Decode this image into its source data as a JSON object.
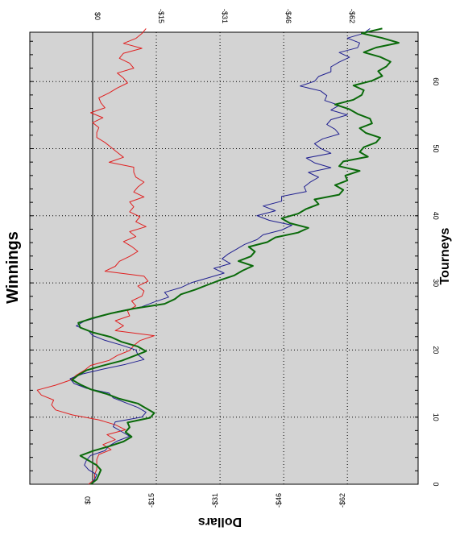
{
  "chart_data": {
    "type": "line",
    "title": "Winnings",
    "xlabel": "Tourneys",
    "ylabel": "Dollars",
    "orientation": "rotated 90 degrees clockwise",
    "xlim": [
      0,
      97
    ],
    "ylim": [
      -100,
      15
    ],
    "x_ticks": [
      "0",
      "10",
      "20",
      "30",
      "40",
      "50",
      "60"
    ],
    "y_ticks_top": [
      "$0",
      "-$15",
      "-$31",
      "-$46",
      "-$62"
    ],
    "y_ticks_bottom": [
      "$0",
      "-$15",
      "-$31",
      "-$46",
      "-$62"
    ],
    "grid": true,
    "zero_line": true,
    "colors": {
      "plot_bg": "#d3d3d3",
      "grid": "#000000"
    },
    "series": [
      {
        "color": "#e02020",
        "stroke": 1,
        "values": [
          1.0,
          -0.5,
          -0.5,
          -1.0,
          -1.0,
          -1.0,
          -1.5,
          -4.5,
          -2.5,
          -5.5,
          -3.5,
          -8.0,
          -5.5,
          -1.5,
          5.0,
          9.0,
          10.0,
          9.5,
          12.5,
          13.5,
          9.0,
          5.5,
          4.0,
          2.0,
          0.5,
          -4.0,
          -6.0,
          -9.0,
          -10.0,
          -11.5,
          -15.0,
          -5.5,
          -7.5,
          -5.5,
          -9.0,
          -8.5,
          -10.5,
          -9.5,
          -12.0,
          -12.5,
          -11.0,
          -13.5,
          -12.5,
          -3.0,
          -5.5,
          -6.5,
          -9.0,
          -11.0,
          -9.5,
          -7.5,
          -10.5,
          -9.0,
          -13.0,
          -10.5,
          -11.5,
          -9.0,
          -10.0,
          -9.0,
          -12.5,
          -10.0,
          -11.0,
          -12.5,
          -10.5,
          -10.0,
          -10.0,
          -4.0,
          -7.5,
          -6.0,
          -4.5,
          -3.0,
          -1.0,
          -1.0,
          -1.5,
          0.0,
          -2.5,
          0.5,
          -3.0,
          -2.0,
          -1.5,
          -4.0,
          -6.0,
          -8.5,
          -7.5,
          -6.0,
          -10.0,
          -9.0,
          -6.5,
          -7.5,
          -12.0,
          -7.5,
          -10.5,
          -12.0,
          -13.0
        ]
      },
      {
        "color": "#202090",
        "stroke": 1,
        "values": [
          0.5,
          -0.5,
          -1.0,
          1.0,
          2.0,
          1.5,
          0.5,
          -3.0,
          -4.0,
          -6.0,
          -9.0,
          -7.0,
          -5.0,
          -5.5,
          -12.0,
          -13.0,
          -11.0,
          -8.0,
          -5.0,
          -4.0,
          1.5,
          4.5,
          5.5,
          2.5,
          -2.5,
          -8.0,
          -12.5,
          -11.0,
          -10.5,
          -7.0,
          -3.0,
          0.0,
          1.0,
          4.0,
          2.0,
          -2.0,
          -6.0,
          -12.0,
          -15.0,
          -18.5,
          -17.5,
          -21.5,
          -24.0,
          -28.0,
          -32.0,
          -29.5,
          -33.5,
          -31.5,
          -33.0,
          -35.0,
          -37.0,
          -40.0,
          -41.5,
          -46.0,
          -48.5,
          -43.0,
          -40.0,
          -44.5,
          -41.5,
          -46.0,
          -46.0,
          -52.0,
          -51.5,
          -53.0,
          -55.0,
          -52.5,
          -58.0,
          -54.0,
          -52.0,
          -58.0,
          -55.5,
          -54.0,
          -56.0,
          -60.0,
          -59.0,
          -57.0,
          -58.0,
          -62.0,
          -58.0,
          -60.0,
          -56.5,
          -57.0,
          -55.5,
          -50.5,
          -54.0,
          -55.0,
          -58.0,
          -58.0,
          -60.0,
          -62.5,
          -60.0,
          -64.5,
          -65.0,
          -62.0,
          -66.0,
          -67.5
        ]
      },
      {
        "color": "#0a6a0a",
        "stroke": 2,
        "values": [
          0.5,
          -1.0,
          -1.5,
          -2.0,
          -1.0,
          1.0,
          3.0,
          0.0,
          -4.0,
          -7.5,
          -9.5,
          -8.0,
          -9.0,
          -8.5,
          -14.0,
          -15.0,
          -13.0,
          -11.0,
          -6.5,
          -3.5,
          0.5,
          3.0,
          5.0,
          3.5,
          1.5,
          -2.5,
          -7.0,
          -10.0,
          -13.0,
          -11.0,
          -7.0,
          -4.5,
          0.0,
          3.0,
          3.5,
          0.0,
          -4.5,
          -10.0,
          -17.5,
          -20.0,
          -21.5,
          -25.0,
          -28.0,
          -31.0,
          -34.5,
          -36.5,
          -39.0,
          -35.5,
          -38.5,
          -39.5,
          -38.0,
          -42.5,
          -44.5,
          -50.0,
          -52.5,
          -48.0,
          -46.0,
          -50.0,
          -52.0,
          -55.0,
          -54.0,
          -60.0,
          -61.0,
          -59.0,
          -62.0,
          -61.5,
          -65.0,
          -60.0,
          -61.0,
          -67.0,
          -65.0,
          -66.0,
          -69.0,
          -70.0,
          -66.5,
          -65.0,
          -68.0,
          -67.5,
          -64.5,
          -62.5,
          -59.0,
          -63.5,
          -65.5,
          -66.0,
          -63.5,
          -68.0,
          -70.5,
          -69.5,
          -71.5,
          -72.5,
          -70.0,
          -66.0,
          -69.0,
          -74.5,
          -70.5,
          -65.5,
          -70.5
        ]
      }
    ]
  }
}
